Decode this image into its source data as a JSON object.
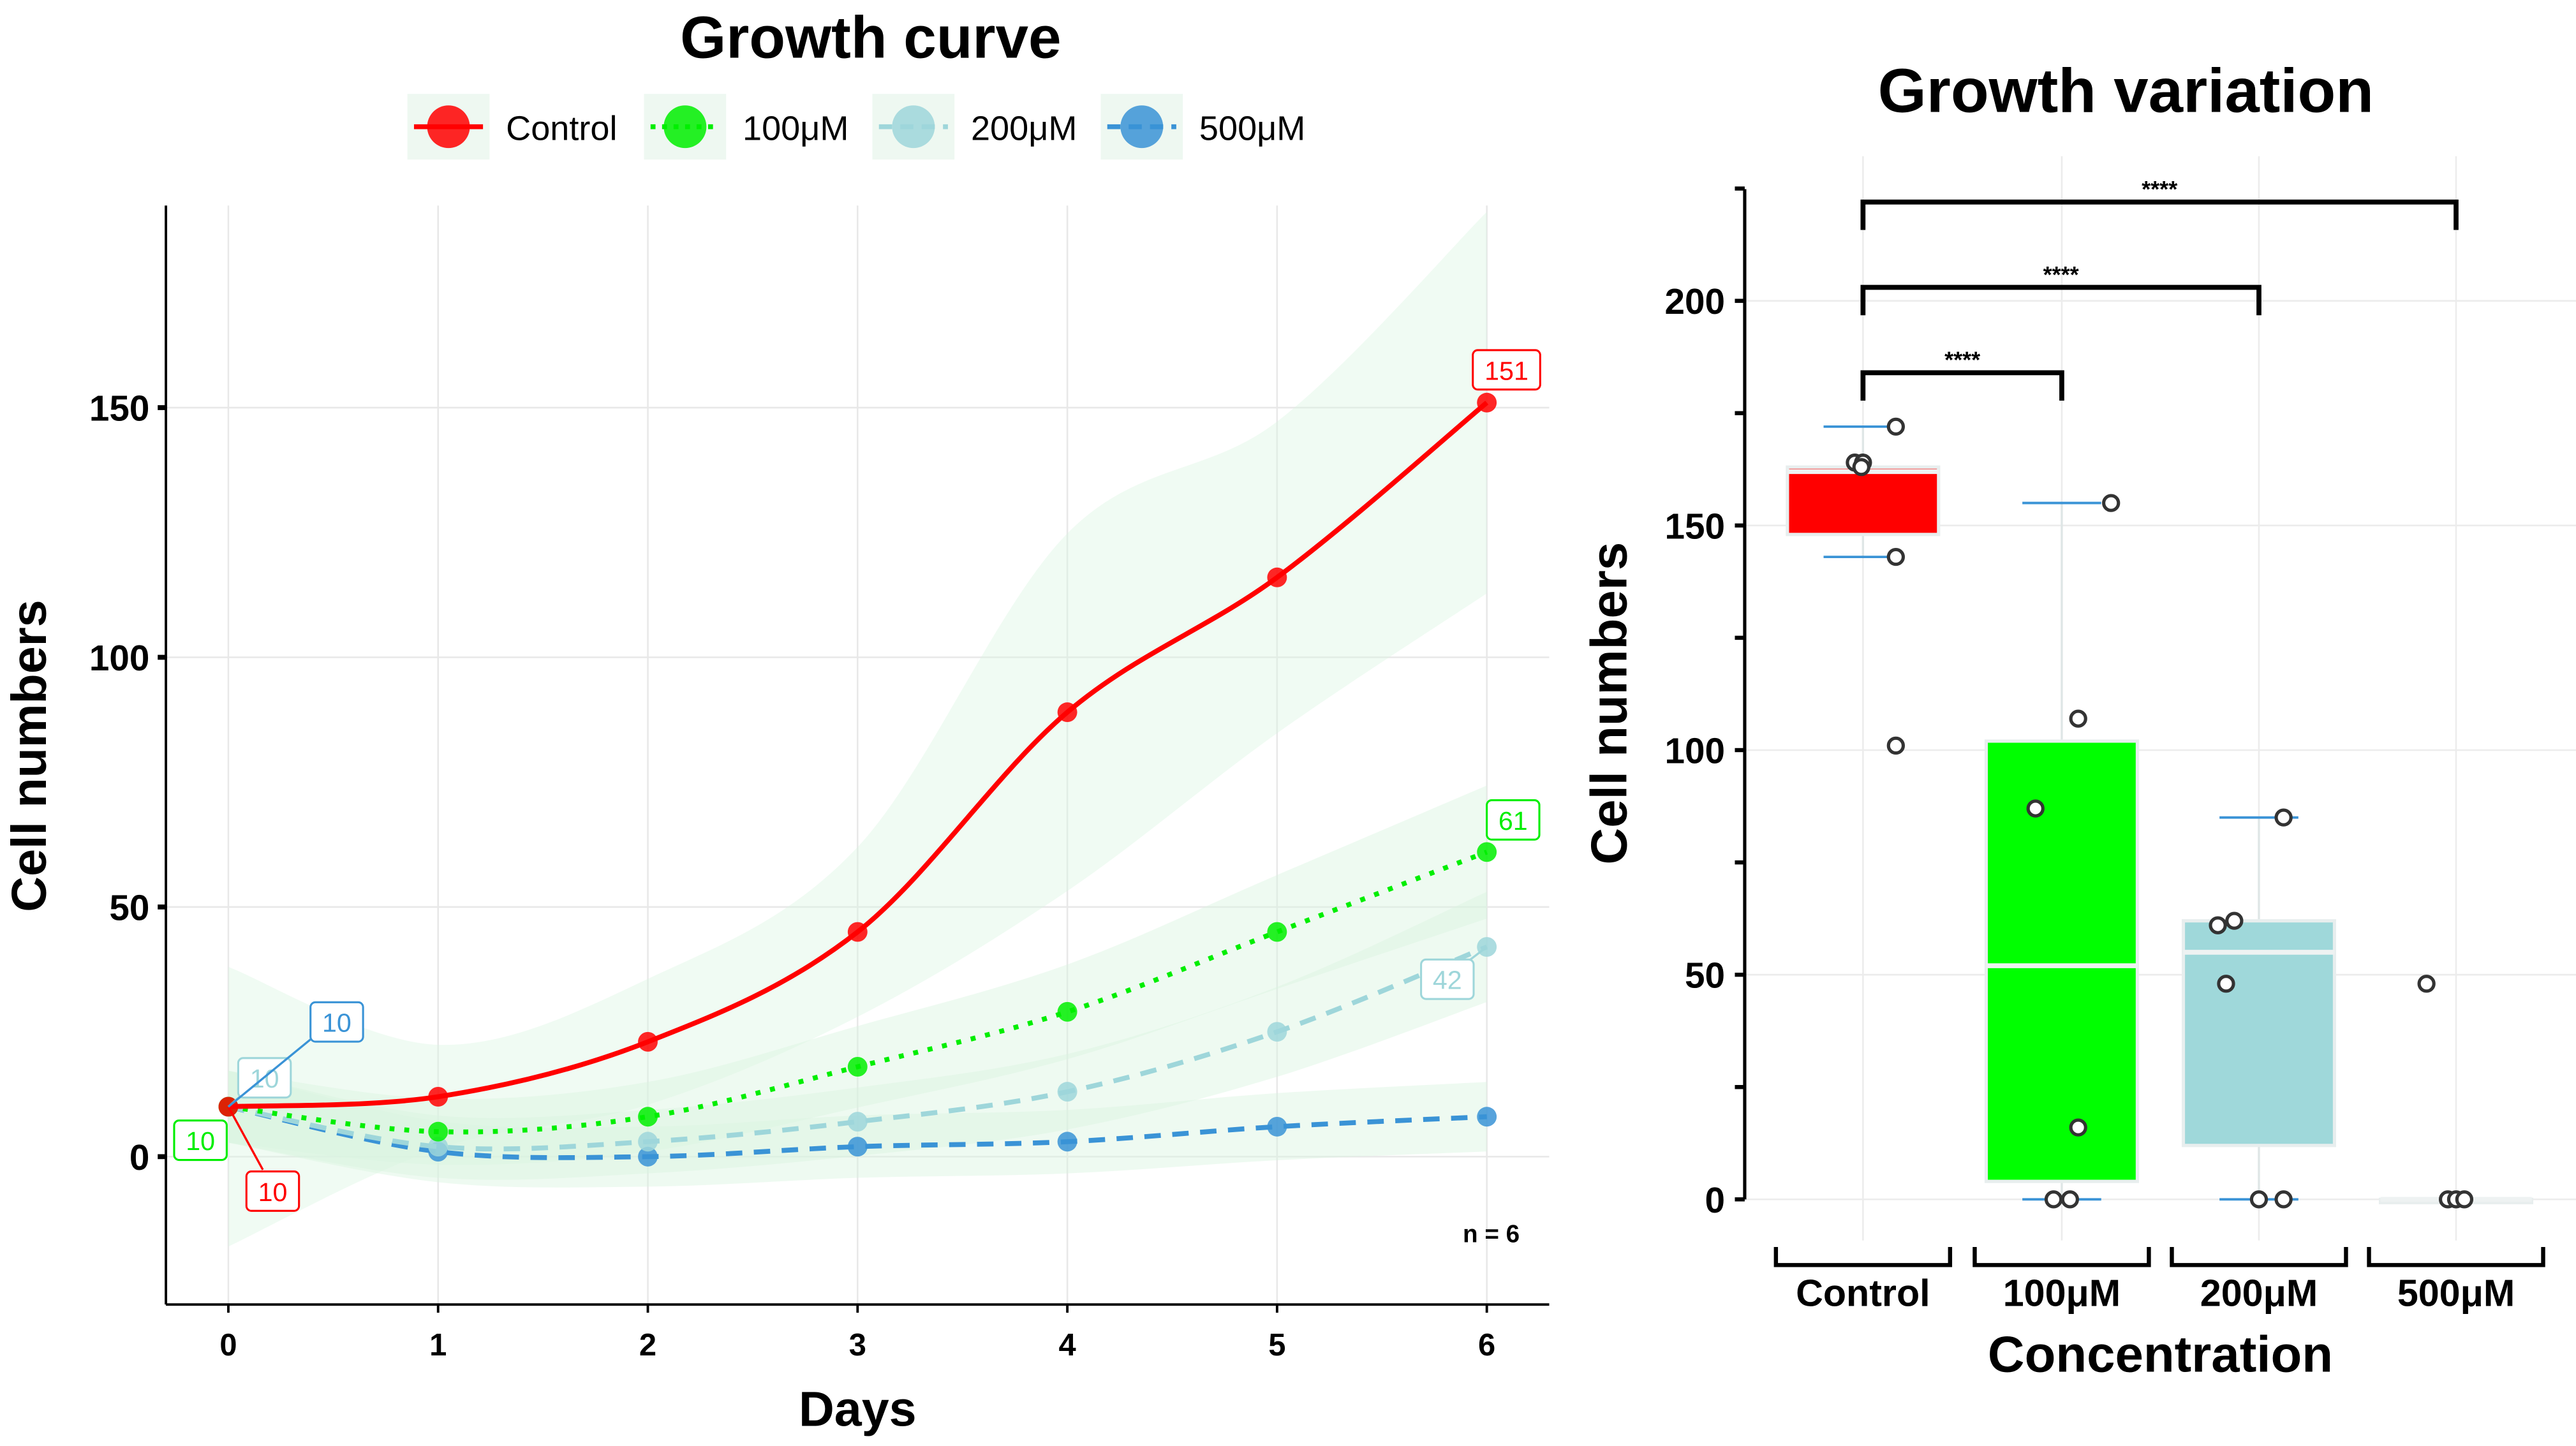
{
  "chart_data": [
    {
      "type": "line",
      "title": "Growth curve",
      "xlabel": "Days",
      "ylabel": "Cell numbers",
      "x": [
        0,
        1,
        2,
        3,
        4,
        5,
        6
      ],
      "xticks": [
        "0",
        "1",
        "2",
        "3",
        "4",
        "5",
        "6"
      ],
      "yticks": [
        "0",
        "50",
        "100",
        "150"
      ],
      "ylim": [
        -30,
        190
      ],
      "grid": true,
      "legend_position": "top",
      "annotation": "n = 6",
      "series": [
        {
          "name": "Control",
          "color": "#ff0000",
          "dash": "solid",
          "values": [
            10,
            12,
            23,
            45,
            89,
            116,
            151
          ],
          "start_label": "10",
          "end_label": "151"
        },
        {
          "name": "100μM",
          "color": "#00ee00",
          "dash": "dotted",
          "values": [
            10,
            5,
            8,
            18,
            29,
            45,
            61
          ],
          "start_label": "10",
          "end_label": "61"
        },
        {
          "name": "200μM",
          "color": "#9ed6da",
          "dash": "dashed",
          "values": [
            10,
            2,
            3,
            7,
            13,
            25,
            42
          ],
          "start_label": "10",
          "end_label": "42"
        },
        {
          "name": "500μM",
          "color": "#3a93d6",
          "dash": "dashed",
          "values": [
            10,
            1,
            0,
            2,
            3,
            6,
            8
          ],
          "start_label": "10"
        }
      ]
    },
    {
      "type": "box",
      "title": "Growth variation",
      "xlabel": "Concentration",
      "ylabel": "Cell numbers",
      "categories": [
        "Control",
        "100μM",
        "200μM",
        "500μM"
      ],
      "yticks": [
        "0",
        "50",
        "100",
        "150",
        "200"
      ],
      "ylim": [
        0,
        225
      ],
      "grid": true,
      "boxes": [
        {
          "name": "Control",
          "color": "#ff0000",
          "q1": 148,
          "median": 162,
          "q3": 163,
          "whisker_low": 143,
          "whisker_high": 172,
          "points": [
            172,
            164,
            164,
            163,
            143,
            101
          ]
        },
        {
          "name": "100μM",
          "color": "#00ff00",
          "q1": 4,
          "median": 52,
          "q3": 102,
          "whisker_low": 0,
          "whisker_high": 155,
          "points": [
            155,
            107,
            87,
            16,
            0,
            0
          ]
        },
        {
          "name": "200μM",
          "color": "#9fd8da",
          "q1": 12,
          "median": 55,
          "q3": 62,
          "whisker_low": 0,
          "whisker_high": 85,
          "points": [
            85,
            62,
            61,
            48,
            0,
            0
          ]
        },
        {
          "name": "500μM",
          "color": "#e8eeee",
          "q1": 0,
          "median": 0,
          "q3": 0,
          "whisker_low": 0,
          "whisker_high": 0,
          "points": [
            48,
            0,
            0,
            0
          ]
        }
      ],
      "significance": [
        {
          "from": "Control",
          "to": "100μM",
          "label": "****",
          "y": 184
        },
        {
          "from": "Control",
          "to": "200μM",
          "label": "****",
          "y": 203
        },
        {
          "from": "Control",
          "to": "500μM",
          "label": "****",
          "y": 222
        }
      ]
    }
  ]
}
